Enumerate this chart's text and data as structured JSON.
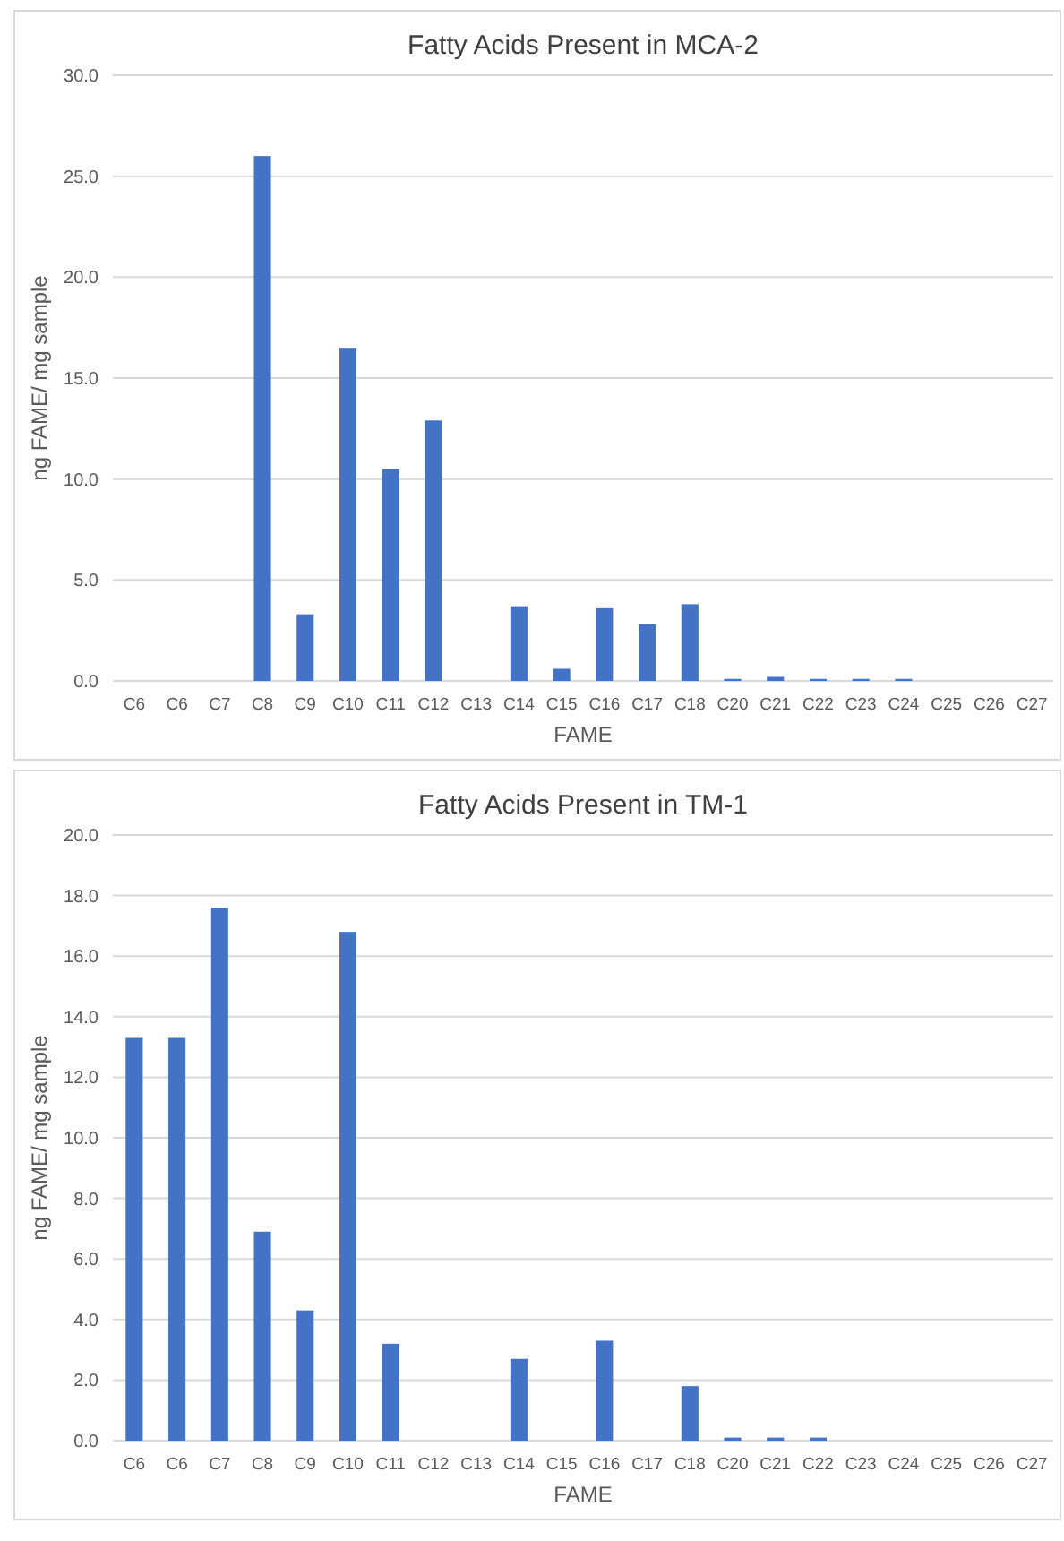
{
  "chart_data": [
    {
      "type": "bar",
      "title": "Fatty Acids Present in MCA-2",
      "xlabel": "FAME",
      "ylabel": "ng FAME/ mg sample",
      "categories": [
        "C6",
        "C6",
        "C7",
        "C8",
        "C9",
        "C10",
        "C11",
        "C12",
        "C13",
        "C14",
        "C15",
        "C16",
        "C17",
        "C18",
        "C20",
        "C21",
        "C22",
        "C23",
        "C24",
        "C25",
        "C26",
        "C27"
      ],
      "values": [
        0,
        0,
        0,
        26.0,
        3.3,
        16.5,
        10.5,
        12.9,
        0,
        3.7,
        0.6,
        3.6,
        2.8,
        3.8,
        0.1,
        0.2,
        0.1,
        0.1,
        0.1,
        0,
        0,
        0
      ],
      "color": "#4472c4",
      "ylim": [
        0,
        30
      ],
      "yticks": [
        {
          "value": 0,
          "label": "0.0"
        },
        {
          "value": 5,
          "label": "5.0"
        },
        {
          "value": 10,
          "label": "10.0"
        },
        {
          "value": 15,
          "label": "15.0"
        },
        {
          "value": 20,
          "label": "20.0"
        },
        {
          "value": 25,
          "label": "25.0"
        },
        {
          "value": 30,
          "label": "30.0"
        }
      ],
      "grid": "y"
    },
    {
      "type": "bar",
      "title": "Fatty Acids Present in TM-1",
      "xlabel": "FAME",
      "ylabel": "ng FAME/ mg sample",
      "categories": [
        "C6",
        "C6",
        "C7",
        "C8",
        "C9",
        "C10",
        "C11",
        "C12",
        "C13",
        "C14",
        "C15",
        "C16",
        "C17",
        "C18",
        "C20",
        "C21",
        "C22",
        "C23",
        "C24",
        "C25",
        "C26",
        "C27"
      ],
      "values": [
        13.3,
        13.3,
        17.6,
        6.9,
        4.3,
        16.8,
        3.2,
        0,
        0,
        2.7,
        0,
        3.3,
        0,
        1.8,
        0.1,
        0.1,
        0.1,
        0,
        0,
        0,
        0,
        0
      ],
      "color": "#4472c4",
      "ylim": [
        0,
        20
      ],
      "yticks": [
        {
          "value": 0,
          "label": "0.0"
        },
        {
          "value": 2,
          "label": "2.0"
        },
        {
          "value": 4,
          "label": "4.0"
        },
        {
          "value": 6,
          "label": "6.0"
        },
        {
          "value": 8,
          "label": "8.0"
        },
        {
          "value": 10,
          "label": "10.0"
        },
        {
          "value": 12,
          "label": "12.0"
        },
        {
          "value": 14,
          "label": "14.0"
        },
        {
          "value": 16,
          "label": "16.0"
        },
        {
          "value": 18,
          "label": "18.0"
        },
        {
          "value": 20,
          "label": "20.0"
        }
      ],
      "grid": "y"
    }
  ]
}
